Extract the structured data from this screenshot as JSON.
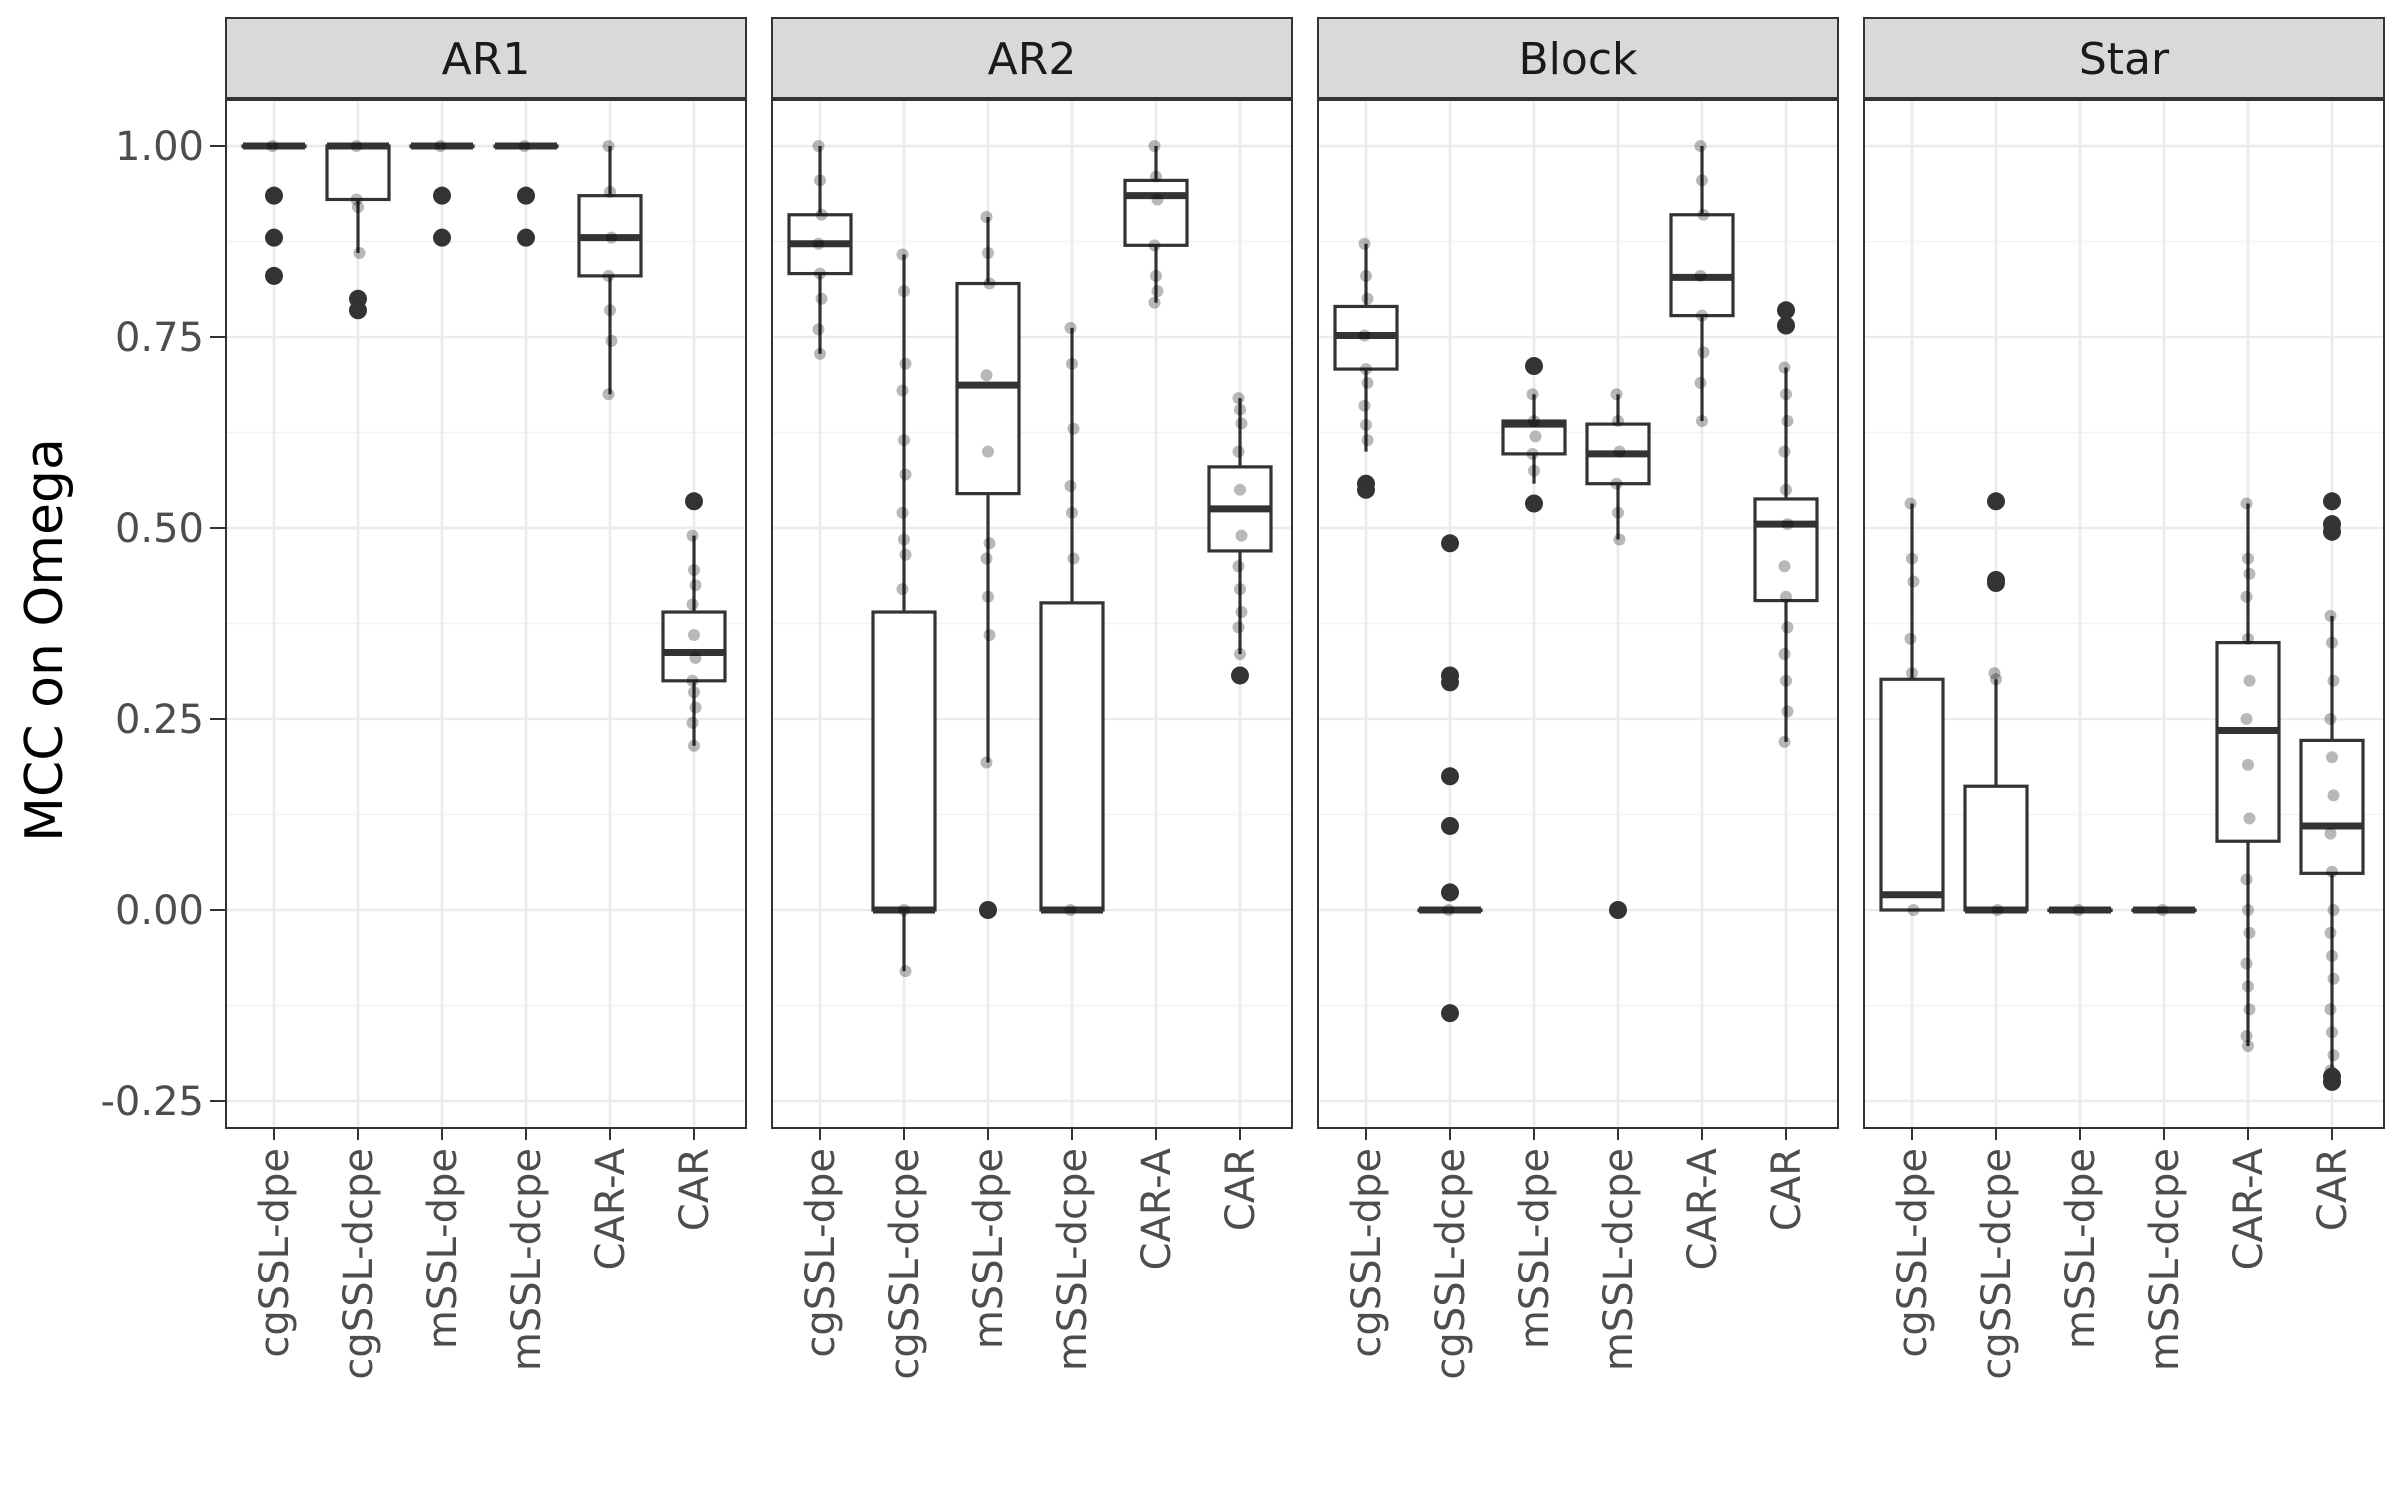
{
  "chart_data": {
    "type": "boxplot",
    "ylabel": "MCC on Omega",
    "xlabel": "",
    "ylim": [
      -0.28,
      1.06
    ],
    "yticks": [
      -0.25,
      0.0,
      0.25,
      0.5,
      0.75,
      1.0
    ],
    "ytick_labels": [
      "-0.25",
      "0.00",
      "0.25",
      "0.50",
      "0.75",
      "1.00"
    ],
    "grid": true,
    "categories": [
      "cgSSL-dpe",
      "cgSSL-dcpe",
      "mSSL-dpe",
      "mSSL-dcpe",
      "CAR-A",
      "CAR"
    ],
    "panels": [
      {
        "label": "AR1",
        "boxes": [
          {
            "category": "cgSSL-dpe",
            "q1": 1.0,
            "median": 1.0,
            "q3": 1.0,
            "whisker_low": 1.0,
            "whisker_high": 1.0,
            "outliers": [
              0.935,
              0.88,
              0.83
            ],
            "points": [
              1.0
            ]
          },
          {
            "category": "cgSSL-dcpe",
            "q1": 0.93,
            "median": 1.0,
            "q3": 1.0,
            "whisker_low": 0.86,
            "whisker_high": 1.0,
            "outliers": [
              0.8,
              0.785
            ],
            "points": [
              0.93,
              0.92,
              0.86,
              1.0
            ]
          },
          {
            "category": "mSSL-dpe",
            "q1": 1.0,
            "median": 1.0,
            "q3": 1.0,
            "whisker_low": 1.0,
            "whisker_high": 1.0,
            "outliers": [
              0.935,
              0.88
            ],
            "points": [
              1.0
            ]
          },
          {
            "category": "mSSL-dcpe",
            "q1": 1.0,
            "median": 1.0,
            "q3": 1.0,
            "whisker_low": 1.0,
            "whisker_high": 1.0,
            "outliers": [
              0.935,
              0.88
            ],
            "points": [
              1.0
            ]
          },
          {
            "category": "CAR-A",
            "q1": 0.83,
            "median": 0.88,
            "q3": 0.935,
            "whisker_low": 0.675,
            "whisker_high": 1.0,
            "outliers": [],
            "points": [
              1.0,
              0.94,
              0.88,
              0.83,
              0.785,
              0.745,
              0.675
            ]
          },
          {
            "category": "CAR",
            "q1": 0.3,
            "median": 0.337,
            "q3": 0.39,
            "whisker_low": 0.215,
            "whisker_high": 0.49,
            "outliers": [
              0.535
            ],
            "points": [
              0.49,
              0.445,
              0.425,
              0.4,
              0.36,
              0.33,
              0.3,
              0.285,
              0.265,
              0.245,
              0.215
            ]
          }
        ]
      },
      {
        "label": "AR2",
        "boxes": [
          {
            "category": "cgSSL-dpe",
            "q1": 0.833,
            "median": 0.872,
            "q3": 0.91,
            "whisker_low": 0.728,
            "whisker_high": 1.0,
            "outliers": [],
            "points": [
              1.0,
              0.955,
              0.91,
              0.872,
              0.833,
              0.8,
              0.76,
              0.728
            ]
          },
          {
            "category": "cgSSL-dcpe",
            "q1": 0.0,
            "median": 0.0,
            "q3": 0.39,
            "whisker_low": -0.08,
            "whisker_high": 0.858,
            "outliers": [],
            "points": [
              0.858,
              0.81,
              0.715,
              0.68,
              0.615,
              0.57,
              0.52,
              0.485,
              0.465,
              0.42,
              0.0,
              -0.08
            ]
          },
          {
            "category": "mSSL-dpe",
            "q1": 0.545,
            "median": 0.687,
            "q3": 0.82,
            "whisker_low": 0.193,
            "whisker_high": 0.907,
            "outliers": [
              0.0
            ],
            "points": [
              0.907,
              0.86,
              0.82,
              0.7,
              0.6,
              0.48,
              0.46,
              0.41,
              0.36,
              0.193
            ]
          },
          {
            "category": "mSSL-dcpe",
            "q1": 0.0,
            "median": 0.0,
            "q3": 0.402,
            "whisker_low": 0.0,
            "whisker_high": 0.762,
            "outliers": [],
            "points": [
              0.762,
              0.715,
              0.63,
              0.555,
              0.52,
              0.46,
              0.0
            ]
          },
          {
            "category": "CAR-A",
            "q1": 0.87,
            "median": 0.935,
            "q3": 0.955,
            "whisker_low": 0.795,
            "whisker_high": 1.0,
            "outliers": [],
            "points": [
              1.0,
              0.96,
              0.93,
              0.87,
              0.83,
              0.81,
              0.795
            ]
          },
          {
            "category": "CAR",
            "q1": 0.47,
            "median": 0.525,
            "q3": 0.58,
            "whisker_low": 0.335,
            "whisker_high": 0.67,
            "outliers": [
              0.307
            ],
            "points": [
              0.67,
              0.655,
              0.637,
              0.6,
              0.55,
              0.49,
              0.45,
              0.42,
              0.39,
              0.37,
              0.335
            ]
          }
        ]
      },
      {
        "label": "Block",
        "boxes": [
          {
            "category": "cgSSL-dpe",
            "q1": 0.708,
            "median": 0.752,
            "q3": 0.79,
            "whisker_low": 0.6,
            "whisker_high": 0.872,
            "outliers": [
              0.558,
              0.55
            ],
            "points": [
              0.872,
              0.83,
              0.8,
              0.752,
              0.708,
              0.69,
              0.66,
              0.635,
              0.615
            ]
          },
          {
            "category": "cgSSL-dcpe",
            "q1": 0.0,
            "median": 0.0,
            "q3": 0.0,
            "whisker_low": 0.0,
            "whisker_high": 0.0,
            "outliers": [
              0.48,
              0.307,
              0.298,
              0.175,
              0.11,
              0.023,
              -0.135
            ],
            "points": [
              0.0
            ]
          },
          {
            "category": "mSSL-dpe",
            "q1": 0.597,
            "median": 0.636,
            "q3": 0.64,
            "whisker_low": 0.558,
            "whisker_high": 0.675,
            "outliers": [
              0.712,
              0.532
            ],
            "points": [
              0.675,
              0.64,
              0.62,
              0.597,
              0.575
            ]
          },
          {
            "category": "mSSL-dcpe",
            "q1": 0.558,
            "median": 0.597,
            "q3": 0.636,
            "whisker_low": 0.485,
            "whisker_high": 0.675,
            "outliers": [
              0.0
            ],
            "points": [
              0.675,
              0.64,
              0.6,
              0.558,
              0.52,
              0.485
            ]
          },
          {
            "category": "CAR-A",
            "q1": 0.778,
            "median": 0.828,
            "q3": 0.91,
            "whisker_low": 0.64,
            "whisker_high": 1.0,
            "outliers": [],
            "points": [
              1.0,
              0.955,
              0.91,
              0.83,
              0.778,
              0.73,
              0.69,
              0.64
            ]
          },
          {
            "category": "CAR",
            "q1": 0.405,
            "median": 0.505,
            "q3": 0.538,
            "whisker_low": 0.22,
            "whisker_high": 0.71,
            "outliers": [
              0.785,
              0.765
            ],
            "points": [
              0.71,
              0.675,
              0.64,
              0.6,
              0.55,
              0.505,
              0.45,
              0.41,
              0.37,
              0.335,
              0.3,
              0.26,
              0.22
            ]
          }
        ]
      },
      {
        "label": "Star",
        "boxes": [
          {
            "category": "cgSSL-dpe",
            "q1": 0.0,
            "median": 0.02,
            "q3": 0.302,
            "whisker_low": 0.0,
            "whisker_high": 0.532,
            "outliers": [],
            "points": [
              0.532,
              0.46,
              0.43,
              0.355,
              0.31,
              0.0
            ]
          },
          {
            "category": "cgSSL-dcpe",
            "q1": 0.0,
            "median": 0.0,
            "q3": 0.162,
            "whisker_low": 0.0,
            "whisker_high": 0.302,
            "outliers": [
              0.535,
              0.432,
              0.428
            ],
            "points": [
              0.31,
              0.302,
              0.0
            ]
          },
          {
            "category": "mSSL-dpe",
            "q1": 0.0,
            "median": 0.0,
            "q3": 0.0,
            "whisker_low": 0.0,
            "whisker_high": 0.0,
            "outliers": [],
            "points": [
              0.0
            ]
          },
          {
            "category": "mSSL-dcpe",
            "q1": 0.0,
            "median": 0.0,
            "q3": 0.0,
            "whisker_low": 0.0,
            "whisker_high": 0.0,
            "outliers": [],
            "points": [
              0.0
            ]
          },
          {
            "category": "CAR-A",
            "q1": 0.09,
            "median": 0.235,
            "q3": 0.35,
            "whisker_low": -0.178,
            "whisker_high": 0.532,
            "outliers": [],
            "points": [
              0.532,
              0.46,
              0.44,
              0.41,
              0.355,
              0.3,
              0.25,
              0.19,
              0.12,
              0.04,
              0.0,
              -0.03,
              -0.07,
              -0.1,
              -0.13,
              -0.165,
              -0.178
            ]
          },
          {
            "category": "CAR",
            "q1": 0.048,
            "median": 0.11,
            "q3": 0.222,
            "whisker_low": -0.21,
            "whisker_high": 0.385,
            "outliers": [
              0.535,
              0.505,
              0.495,
              -0.218,
              -0.225
            ],
            "points": [
              0.385,
              0.35,
              0.3,
              0.25,
              0.2,
              0.15,
              0.1,
              0.05,
              0.0,
              -0.03,
              -0.06,
              -0.09,
              -0.13,
              -0.16,
              -0.19,
              -0.21
            ]
          }
        ]
      }
    ]
  }
}
